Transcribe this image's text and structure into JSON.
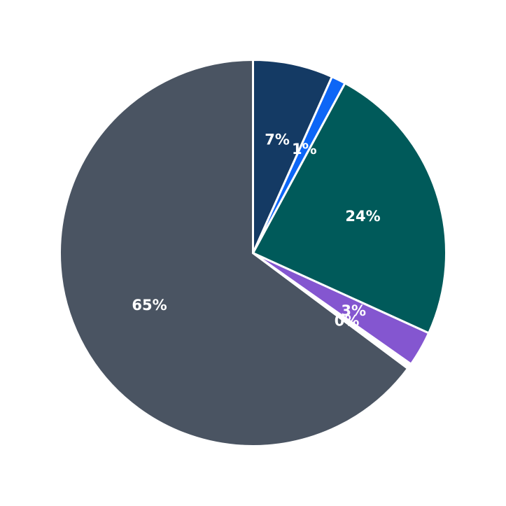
{
  "chart_data": {
    "type": "pie",
    "start_angle_deg": 90,
    "direction": "counterclockwise",
    "slices": [
      {
        "label_text": "65%",
        "value": 64.8,
        "color": "#4a5462"
      },
      {
        "label_text": "0%",
        "value": 0.45,
        "color": "#ffffff"
      },
      {
        "label_text": "3%",
        "value": 2.95,
        "color": "#8456d0"
      },
      {
        "label_text": "24%",
        "value": 23.9,
        "color": "#005a5a"
      },
      {
        "label_text": "1%",
        "value": 1.2,
        "color": "#0d66f6"
      },
      {
        "label_text": "7%",
        "value": 6.7,
        "color": "#143a64"
      }
    ]
  }
}
